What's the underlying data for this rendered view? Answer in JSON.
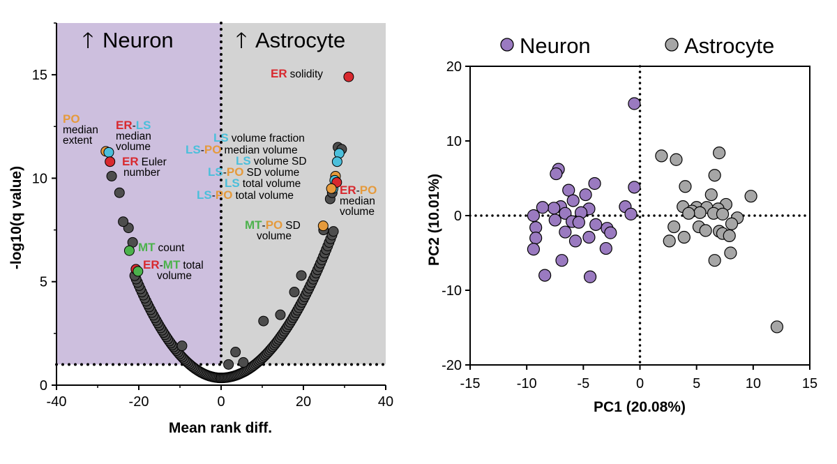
{
  "colors": {
    "neuron_bg": "#CDBFDE",
    "astro_bg": "#D3D3D3",
    "ER": "#D8292F",
    "LS": "#4BBFDB",
    "PO": "#E59A3C",
    "MT": "#4CB24C",
    "neuron_pt": "#9A7AC0",
    "astro_pt": "#A6A6A6",
    "dark_pt": "#4D4D4D"
  },
  "chart_data": [
    {
      "type": "scatter",
      "title": "",
      "xlabel": "Mean rank diff.",
      "ylabel": "-log10(q value)",
      "xlim": [
        -40,
        40
      ],
      "ylim": [
        0,
        17.5
      ],
      "xticks": [
        "-40",
        "-20",
        "0",
        "20",
        "40"
      ],
      "yticks": [
        "0",
        "5",
        "10",
        "15"
      ],
      "threshold_y": 1,
      "regions": [
        {
          "name": "Neuron",
          "label": "Neuron",
          "arrow": "up"
        },
        {
          "name": "Astrocyte",
          "label": "Astrocyte",
          "arrow": "up"
        }
      ],
      "highlighted": [
        {
          "x": 31,
          "y": 14.9,
          "color": "ER"
        },
        {
          "x": -28,
          "y": 11.3,
          "color": "PO"
        },
        {
          "x": -27.3,
          "y": 11.25,
          "color": "LS"
        },
        {
          "x": -27,
          "y": 10.8,
          "color": "ER"
        },
        {
          "x": 28.7,
          "y": 11.2,
          "color": "LS"
        },
        {
          "x": 28.2,
          "y": 10.8,
          "color": "LS"
        },
        {
          "x": 27.8,
          "y": 10.1,
          "color": "PO"
        },
        {
          "x": 27.6,
          "y": 9.9,
          "color": "LS"
        },
        {
          "x": 27.2,
          "y": 9.5,
          "color": "LS"
        },
        {
          "x": 28.1,
          "y": 9.8,
          "color": "ER"
        },
        {
          "x": 26.8,
          "y": 9.5,
          "color": "PO"
        },
        {
          "x": 24.8,
          "y": 7.7,
          "color": "PO"
        },
        {
          "x": -22.3,
          "y": 6.5,
          "color": "MT"
        },
        {
          "x": -20.7,
          "y": 5.6,
          "color": "ER"
        },
        {
          "x": -20.2,
          "y": 5.5,
          "color": "MT"
        }
      ],
      "annotations": [
        {
          "id": "er-solidity",
          "lines": [
            [
              [
                "ER",
                "ER"
              ],
              [
                "solidity",
                null
              ]
            ]
          ]
        },
        {
          "id": "po-median-extent",
          "lines": [
            [
              [
                "PO",
                "PO"
              ]
            ],
            [
              [
                "median",
                null
              ]
            ],
            [
              [
                "extent",
                null
              ]
            ]
          ]
        },
        {
          "id": "er-ls-median-volume",
          "lines": [
            [
              [
                "ER",
                "ER"
              ],
              [
                "-",
                null
              ],
              [
                "LS",
                "LS"
              ]
            ],
            [
              [
                "median",
                null
              ]
            ],
            [
              [
                "volume",
                null
              ]
            ]
          ]
        },
        {
          "id": "er-euler-number",
          "lines": [
            [
              [
                "ER",
                "ER"
              ],
              [
                "Euler",
                null
              ]
            ],
            [
              [
                "number",
                null
              ]
            ]
          ]
        },
        {
          "id": "ls-volume-fraction",
          "lines": [
            [
              [
                "LS",
                "LS"
              ],
              [
                "volume fraction",
                null
              ]
            ]
          ]
        },
        {
          "id": "ls-po-median-volume",
          "lines": [
            [
              [
                "LS",
                "LS"
              ],
              [
                "-",
                null
              ],
              [
                "PO",
                "PO"
              ],
              [
                "median volume",
                null
              ]
            ]
          ]
        },
        {
          "id": "ls-volume-sd",
          "lines": [
            [
              [
                "LS",
                "LS"
              ],
              [
                "volume SD",
                null
              ]
            ]
          ]
        },
        {
          "id": "ls-po-sd-volume",
          "lines": [
            [
              [
                "LS",
                "LS"
              ],
              [
                "-",
                null
              ],
              [
                "PO",
                "PO"
              ],
              [
                "SD volume",
                null
              ]
            ]
          ]
        },
        {
          "id": "ls-total-volume",
          "lines": [
            [
              [
                "LS",
                "LS"
              ],
              [
                "total volume",
                null
              ]
            ]
          ]
        },
        {
          "id": "ls-po-total-volume",
          "lines": [
            [
              [
                "LS",
                "LS"
              ],
              [
                "-",
                null
              ],
              [
                "PO",
                "PO"
              ],
              [
                "total volume",
                null
              ]
            ]
          ]
        },
        {
          "id": "er-po-median-volume",
          "lines": [
            [
              [
                "ER",
                "ER"
              ],
              [
                "-",
                null
              ],
              [
                "PO",
                "PO"
              ]
            ],
            [
              [
                "median",
                null
              ]
            ],
            [
              [
                "volume",
                null
              ]
            ]
          ]
        },
        {
          "id": "mt-po-sd-volume",
          "lines": [
            [
              [
                "MT",
                "MT"
              ],
              [
                "-",
                null
              ],
              [
                "PO",
                "PO"
              ],
              [
                "SD",
                null
              ]
            ],
            [
              [
                "volume",
                null
              ]
            ]
          ]
        },
        {
          "id": "mt-count",
          "lines": [
            [
              [
                "MT",
                "MT"
              ],
              [
                "count",
                null
              ]
            ]
          ]
        },
        {
          "id": "er-mt-total-volume",
          "lines": [
            [
              [
                "ER",
                "ER"
              ],
              [
                "-",
                null
              ],
              [
                "MT",
                "MT"
              ],
              [
                "total",
                null
              ]
            ],
            [
              [
                "volume",
                null
              ]
            ]
          ]
        }
      ]
    },
    {
      "type": "scatter",
      "title": "",
      "xlabel": "PC1 (20.08%)",
      "ylabel": "PC2 (10.01%)",
      "xlim": [
        -15,
        15
      ],
      "ylim": [
        -20,
        20
      ],
      "xticks": [
        "-15",
        "-10",
        "-5",
        "0",
        "5",
        "10",
        "15"
      ],
      "yticks": [
        "-20",
        "-10",
        "0",
        "10",
        "20"
      ],
      "legend": [
        "Neuron",
        "Astrocyte"
      ],
      "legend_position": "top",
      "series": [
        {
          "name": "Neuron",
          "points": [
            [
              -0.5,
              15
            ],
            [
              -7.2,
              6.2
            ],
            [
              -7.4,
              5.6
            ],
            [
              -4.0,
              4.3
            ],
            [
              -0.5,
              3.8
            ],
            [
              -6.3,
              3.4
            ],
            [
              -4.8,
              2.8
            ],
            [
              -5.9,
              2.0
            ],
            [
              -7.0,
              1.2
            ],
            [
              -7.6,
              1.0
            ],
            [
              -8.6,
              1.1
            ],
            [
              -4.5,
              0.9
            ],
            [
              -1.3,
              1.2
            ],
            [
              -6.6,
              0.3
            ],
            [
              -5.2,
              0.4
            ],
            [
              -9.4,
              0.0
            ],
            [
              -0.8,
              0.2
            ],
            [
              -7.5,
              -0.6
            ],
            [
              -6.0,
              -0.8
            ],
            [
              -5.4,
              -0.9
            ],
            [
              -3.9,
              -1.2
            ],
            [
              -9.2,
              -1.6
            ],
            [
              -2.9,
              -1.7
            ],
            [
              -6.6,
              -2.2
            ],
            [
              -2.6,
              -2.3
            ],
            [
              -9.2,
              -3.0
            ],
            [
              -4.5,
              -2.9
            ],
            [
              -5.7,
              -3.4
            ],
            [
              -9.4,
              -4.5
            ],
            [
              -3.0,
              -4.4
            ],
            [
              -6.9,
              -6.0
            ],
            [
              -8.4,
              -8.0
            ],
            [
              -4.4,
              -8.2
            ]
          ]
        },
        {
          "name": "Astrocyte",
          "points": [
            [
              1.9,
              8.0
            ],
            [
              3.2,
              7.5
            ],
            [
              7.0,
              8.4
            ],
            [
              6.6,
              5.4
            ],
            [
              4.0,
              3.9
            ],
            [
              6.3,
              2.8
            ],
            [
              9.8,
              2.6
            ],
            [
              3.8,
              1.2
            ],
            [
              5.0,
              1.1
            ],
            [
              5.9,
              1.1
            ],
            [
              7.6,
              1.5
            ],
            [
              4.6,
              0.6
            ],
            [
              6.9,
              0.9
            ],
            [
              5.3,
              0.4
            ],
            [
              4.3,
              0.3
            ],
            [
              6.5,
              0.3
            ],
            [
              7.3,
              0.2
            ],
            [
              8.6,
              -0.3
            ],
            [
              8.1,
              -1.1
            ],
            [
              3.0,
              -1.5
            ],
            [
              5.2,
              -1.5
            ],
            [
              5.8,
              -2.0
            ],
            [
              7.0,
              -2.1
            ],
            [
              7.3,
              -2.4
            ],
            [
              7.9,
              -2.7
            ],
            [
              2.6,
              -3.4
            ],
            [
              3.9,
              -2.9
            ],
            [
              6.6,
              -6.0
            ],
            [
              8.0,
              -5.0
            ],
            [
              12.1,
              -14.9
            ]
          ]
        }
      ]
    }
  ]
}
